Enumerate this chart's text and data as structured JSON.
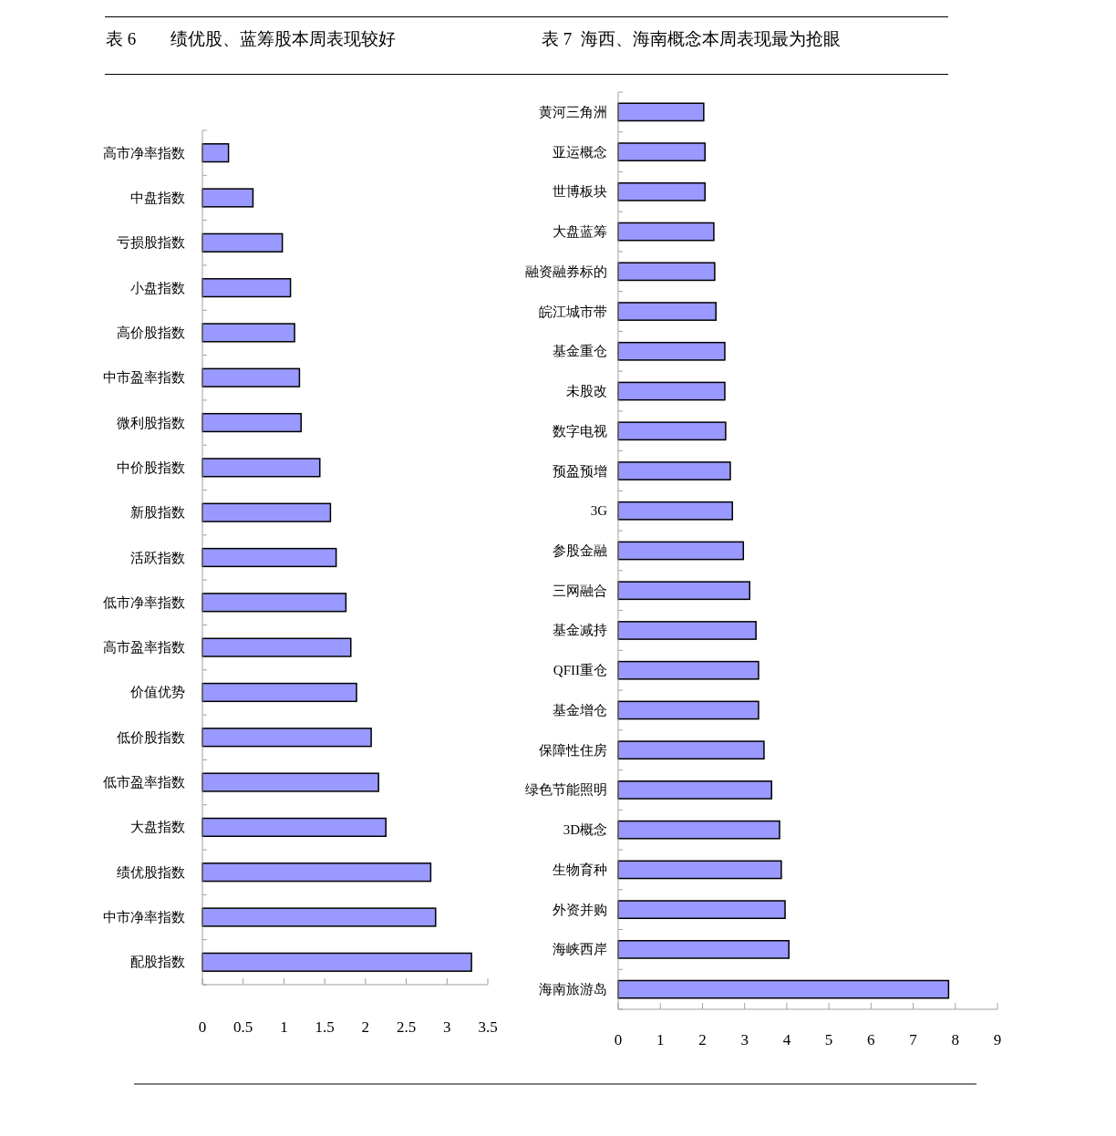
{
  "chart_data": [
    {
      "type": "bar",
      "orientation": "horizontal",
      "title": "表 6　　绩优股、蓝筹股本周表现较好",
      "categories": [
        "高市净率指数",
        "中盘指数",
        "亏损股指数",
        "小盘指数",
        "高价股指数",
        "中市盈率指数",
        "微利股指数",
        "中价股指数",
        "新股指数",
        "活跃指数",
        "低市净率指数",
        "高市盈率指数",
        "价值优势",
        "低价股指数",
        "低市盈率指数",
        "大盘指数",
        "绩优股指数",
        "中市净率指数",
        "配股指数"
      ],
      "values": [
        0.32,
        0.62,
        0.98,
        1.08,
        1.13,
        1.19,
        1.21,
        1.44,
        1.57,
        1.64,
        1.76,
        1.82,
        1.89,
        2.07,
        2.16,
        2.25,
        2.8,
        2.86,
        3.3
      ],
      "color": "#9999ff",
      "xlim": [
        0,
        3.5
      ],
      "xticks": [
        0,
        0.5,
        1,
        1.5,
        2,
        2.5,
        3,
        3.5
      ]
    },
    {
      "type": "bar",
      "orientation": "horizontal",
      "title": "表 7  海西、海南概念本周表现最为抢眼",
      "categories": [
        "黄河三角洲",
        "亚运概念",
        "世博板块",
        "大盘蓝筹",
        "融资融券标的",
        "皖江城市带",
        "基金重仓",
        "未股改",
        "数字电视",
        "预盈预增",
        "3G",
        "参股金融",
        "三网融合",
        "基金减持",
        "QFII重仓",
        "基金增仓",
        "保障性住房",
        "绿色节能照明",
        "3D概念",
        "生物育种",
        "外资并购",
        "海峡西岸",
        "海南旅游岛"
      ],
      "values": [
        2.03,
        2.06,
        2.06,
        2.27,
        2.29,
        2.32,
        2.53,
        2.53,
        2.55,
        2.66,
        2.71,
        2.97,
        3.12,
        3.27,
        3.33,
        3.33,
        3.46,
        3.64,
        3.83,
        3.87,
        3.96,
        4.05,
        7.84
      ],
      "color": "#9999ff",
      "xlim": [
        0,
        9
      ],
      "xticks": [
        0,
        1,
        2,
        3,
        4,
        5,
        6,
        7,
        8,
        9
      ]
    }
  ]
}
